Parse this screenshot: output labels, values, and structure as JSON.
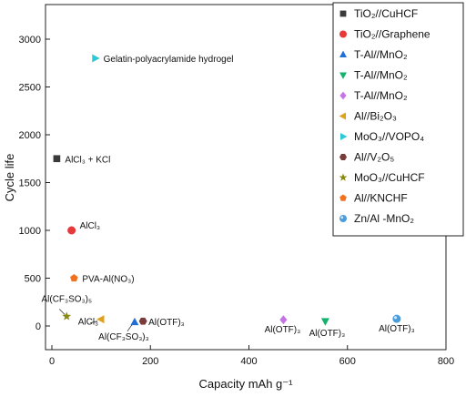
{
  "chart_data": {
    "type": "scatter",
    "xlabel": "Capacity mAh g⁻¹",
    "ylabel": "Cycle life",
    "xlim": [
      0,
      800
    ],
    "ylim": [
      -150,
      3250
    ],
    "xticks": [
      0,
      200,
      400,
      600,
      800
    ],
    "yticks": [
      0,
      500,
      1000,
      1500,
      2000,
      2500,
      3000
    ],
    "grid": false,
    "legend_position": "top-right",
    "series": [
      {
        "name": "TiO₂//CuHCF",
        "color": "#3a3a3a",
        "marker": "square",
        "x": [
          10
        ],
        "y": [
          1750
        ],
        "annotation": "AlCl₃ + KCl"
      },
      {
        "name": "TiO₂//Graphene",
        "color": "#e8393a",
        "marker": "circle",
        "x": [
          40
        ],
        "y": [
          1000
        ],
        "annotation": "AlCl₃"
      },
      {
        "name": "T-Al//MnO₂",
        "color": "#1f6fd6",
        "marker": "triangle-up",
        "x": [
          168
        ],
        "y": [
          40
        ],
        "annotation": "Al(CF₃SO₃)₃"
      },
      {
        "name": "T-Al//MnO₂",
        "color": "#14b26e",
        "marker": "triangle-down",
        "x": [
          555
        ],
        "y": [
          50
        ],
        "annotation": "Al(OTF)₃"
      },
      {
        "name": "T-Al//MnO₂",
        "color": "#c474e3",
        "marker": "diamond",
        "x": [
          470
        ],
        "y": [
          65
        ],
        "annotation": "Al(OTF)₃"
      },
      {
        "name": "Al//Bi₂O₃",
        "color": "#e0a21a",
        "marker": "triangle-left",
        "x": [
          100
        ],
        "y": [
          70
        ],
        "annotation": "AlCl₃"
      },
      {
        "name": "MoO₃//VOPO₄",
        "color": "#2ec8d6",
        "marker": "triangle-right",
        "x": [
          88
        ],
        "y": [
          2800
        ],
        "annotation": "Gelatin-polyacrylamide hydrogel"
      },
      {
        "name": "Al//V₂O₅",
        "color": "#7a3b3b",
        "marker": "hexagon",
        "x": [
          185
        ],
        "y": [
          50
        ],
        "annotation": "Al(OTF)₃"
      },
      {
        "name": "MoO₃//CuHCF",
        "color": "#8a8a10",
        "marker": "star",
        "x": [
          30
        ],
        "y": [
          100
        ],
        "annotation": "Al(CF₃SO₃)₅"
      },
      {
        "name": "Al//KNCHF",
        "color": "#f0711f",
        "marker": "pentagon",
        "x": [
          45
        ],
        "y": [
          500
        ],
        "annotation": "PVA-Al(NO₃)"
      },
      {
        "name": "Zn/Al -MnO₂",
        "color": "#4a9cdb",
        "marker": "sphere",
        "x": [
          700
        ],
        "y": [
          75
        ],
        "annotation": "Al(OTF)₃"
      }
    ]
  }
}
